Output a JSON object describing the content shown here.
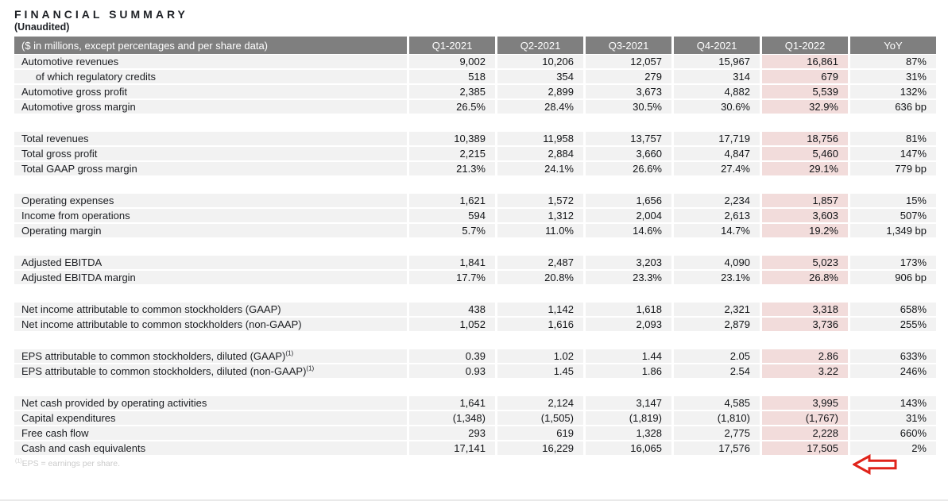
{
  "page": {
    "title": "FINANCIAL SUMMARY",
    "subtitle": "(Unaudited)"
  },
  "table": {
    "label_header": "($ in millions, except percentages and per share data)",
    "columns": [
      "Q1-2021",
      "Q2-2021",
      "Q3-2021",
      "Q4-2021",
      "Q1-2022",
      "YoY"
    ],
    "highlight_column": "Q1-2022",
    "sections": [
      {
        "rows": [
          {
            "label": "Automotive revenues",
            "values": [
              "9,002",
              "10,206",
              "12,057",
              "15,967",
              "16,861",
              "87%"
            ]
          },
          {
            "label": "of which regulatory credits",
            "indent": true,
            "values": [
              "518",
              "354",
              "279",
              "314",
              "679",
              "31%"
            ]
          },
          {
            "label": "Automotive gross profit",
            "values": [
              "2,385",
              "2,899",
              "3,673",
              "4,882",
              "5,539",
              "132%"
            ]
          },
          {
            "label": "Automotive gross margin",
            "values": [
              "26.5%",
              "28.4%",
              "30.5%",
              "30.6%",
              "32.9%",
              "636 bp"
            ]
          }
        ]
      },
      {
        "rows": [
          {
            "label": "Total revenues",
            "values": [
              "10,389",
              "11,958",
              "13,757",
              "17,719",
              "18,756",
              "81%"
            ]
          },
          {
            "label": "Total gross profit",
            "values": [
              "2,215",
              "2,884",
              "3,660",
              "4,847",
              "5,460",
              "147%"
            ]
          },
          {
            "label": "Total GAAP gross margin",
            "values": [
              "21.3%",
              "24.1%",
              "26.6%",
              "27.4%",
              "29.1%",
              "779 bp"
            ]
          }
        ]
      },
      {
        "rows": [
          {
            "label": "Operating expenses",
            "values": [
              "1,621",
              "1,572",
              "1,656",
              "2,234",
              "1,857",
              "15%"
            ]
          },
          {
            "label": "Income from operations",
            "values": [
              "594",
              "1,312",
              "2,004",
              "2,613",
              "3,603",
              "507%"
            ]
          },
          {
            "label": "Operating margin",
            "values": [
              "5.7%",
              "11.0%",
              "14.6%",
              "14.7%",
              "19.2%",
              "1,349 bp"
            ]
          }
        ]
      },
      {
        "rows": [
          {
            "label": "Adjusted EBITDA",
            "values": [
              "1,841",
              "2,487",
              "3,203",
              "4,090",
              "5,023",
              "173%"
            ]
          },
          {
            "label": "Adjusted EBITDA margin",
            "values": [
              "17.7%",
              "20.8%",
              "23.3%",
              "23.1%",
              "26.8%",
              "906 bp"
            ]
          }
        ]
      },
      {
        "rows": [
          {
            "label": "Net income attributable to common stockholders (GAAP)",
            "values": [
              "438",
              "1,142",
              "1,618",
              "2,321",
              "3,318",
              "658%"
            ]
          },
          {
            "label": "Net income attributable to common stockholders (non-GAAP)",
            "values": [
              "1,052",
              "1,616",
              "2,093",
              "2,879",
              "3,736",
              "255%"
            ]
          }
        ]
      },
      {
        "rows": [
          {
            "label": "EPS attributable to common stockholders, diluted (GAAP)",
            "sup": "(1)",
            "values": [
              "0.39",
              "1.02",
              "1.44",
              "2.05",
              "2.86",
              "633%"
            ]
          },
          {
            "label": "EPS attributable to common stockholders, diluted (non-GAAP)",
            "sup": "(1)",
            "values": [
              "0.93",
              "1.45",
              "1.86",
              "2.54",
              "3.22",
              "246%"
            ]
          }
        ]
      },
      {
        "rows": [
          {
            "label": "Net cash provided by operating activities",
            "values": [
              "1,641",
              "2,124",
              "3,147",
              "4,585",
              "3,995",
              "143%"
            ]
          },
          {
            "label": "Capital expenditures",
            "values": [
              "(1,348)",
              "(1,505)",
              "(1,819)",
              "(1,810)",
              "(1,767)",
              "31%"
            ]
          },
          {
            "label": "Free cash flow",
            "arrow": true,
            "values": [
              "293",
              "619",
              "1,328",
              "2,775",
              "2,228",
              "660%"
            ]
          },
          {
            "label": "Cash and cash equivalents",
            "values": [
              "17,141",
              "16,229",
              "16,065",
              "17,576",
              "17,505",
              "2%"
            ]
          }
        ]
      }
    ]
  },
  "footnote": {
    "sup": "(1)",
    "text": "EPS = earnings per share."
  },
  "annotations": {
    "arrow": {
      "shape": "left-block-arrow",
      "row": "Free cash flow",
      "column": "Q1-2022"
    }
  },
  "colors": {
    "header_bg": "#7f7f7f",
    "row_bg": "#f2f2f2",
    "highlight_bg": "#f2dcdb",
    "arrow_red": "#e0241b",
    "footnote": "#cbcbcb"
  }
}
